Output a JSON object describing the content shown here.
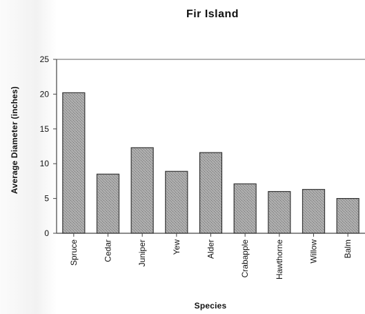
{
  "chart_data": {
    "type": "bar",
    "title": "Fir Island",
    "xlabel": "Species",
    "ylabel": "Average Diameter (inches)",
    "categories": [
      "Spruce",
      "Cedar",
      "Juniper",
      "Yew",
      "Alder",
      "Crabapple",
      "Hawthorne",
      "Willow",
      "Balm"
    ],
    "values": [
      20.2,
      8.5,
      12.3,
      8.9,
      11.6,
      7.1,
      6.0,
      6.3,
      5.0
    ],
    "ylim": [
      0,
      25
    ],
    "yticks": [
      "0",
      "5",
      "10",
      "15",
      "20",
      "25"
    ],
    "grid": false,
    "legend": "none"
  },
  "colors": {
    "bar_fill": "#9c9c9c",
    "bar_stroke": "#333333",
    "axis": "#444444",
    "top_rule": "#7f7f7f",
    "text": "#111111"
  }
}
